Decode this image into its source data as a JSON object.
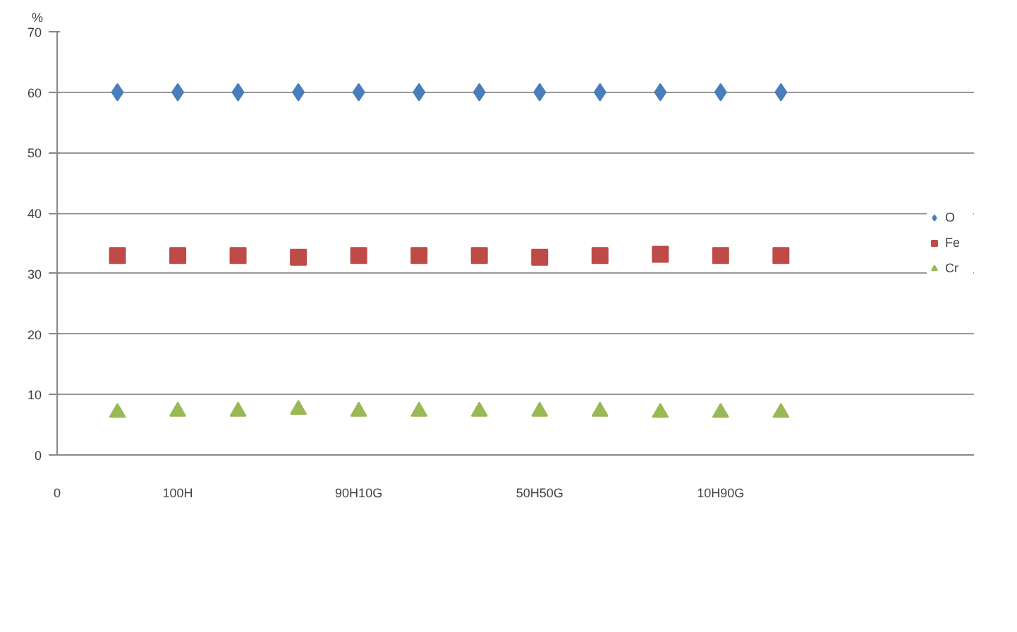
{
  "chart_data": {
    "type": "scatter",
    "ylabel": "%",
    "categories": [
      null,
      "100H",
      null,
      null,
      "90H10G",
      null,
      null,
      "50H50G",
      null,
      null,
      "10H90G",
      null
    ],
    "annotations": [
      "0"
    ],
    "ylim": [
      0,
      70
    ],
    "yticks": [
      0,
      10,
      20,
      30,
      40,
      50,
      60,
      70
    ],
    "grid": "y",
    "legend": "right",
    "series": [
      {
        "name": "O",
        "color": "#4a7ebb",
        "marker": "diamond",
        "values": [
          60,
          60,
          60,
          60,
          60,
          60,
          60,
          60,
          60,
          60,
          60,
          60
        ]
      },
      {
        "name": "Fe",
        "color": "#be4b48",
        "marker": "square",
        "values": [
          33,
          33,
          33,
          32.7,
          33,
          33,
          33,
          32.7,
          33,
          33.2,
          33,
          33
        ]
      },
      {
        "name": "Cr",
        "color": "#98b954",
        "marker": "triangle",
        "values": [
          7,
          7.2,
          7.2,
          7.5,
          7.2,
          7.2,
          7.2,
          7.2,
          7.2,
          7,
          7,
          7
        ]
      }
    ]
  }
}
